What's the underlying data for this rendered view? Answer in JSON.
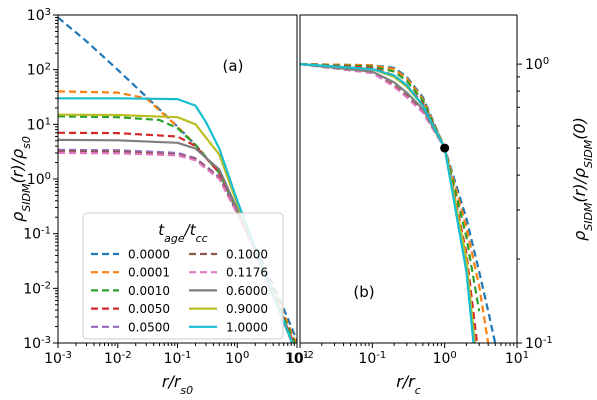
{
  "chart_data": [
    {
      "type": "line",
      "panel_label": "(a)",
      "xlabel": "r/r_s0",
      "ylabel": "ρ_SIDM(r)/ρ_s0",
      "xscale": "log",
      "yscale": "log",
      "xlim": [
        0.001,
        10
      ],
      "ylim": [
        0.001,
        1000
      ],
      "xticks": [
        "10^-3",
        "10^-2",
        "10^-1",
        "10^0",
        "10^1"
      ],
      "yticks": [
        "10^-3",
        "10^-2",
        "10^-1",
        "10^0",
        "10^1",
        "10^2",
        "10^3"
      ],
      "legend": {
        "title": "t_age/t_cc",
        "placement": "lower-left",
        "columns": 2
      },
      "series": [
        {
          "name": "0.0000",
          "style": "dashed",
          "color": "#1f77b4",
          "x": [
            0.001,
            0.003,
            0.01,
            0.03,
            0.1,
            0.2,
            0.5,
            1,
            2,
            5,
            10
          ],
          "y": [
            900,
            330,
            99,
            32,
            9.1,
            4.2,
            1.3,
            0.25,
            0.056,
            0.0068,
            0.0011
          ]
        },
        {
          "name": "0.0001",
          "style": "dashed",
          "color": "#ff7f0e",
          "x": [
            0.001,
            0.01,
            0.03,
            0.1,
            0.2,
            0.5,
            1,
            2,
            5,
            10
          ],
          "y": [
            40,
            38,
            30,
            9,
            4.2,
            1.3,
            0.25,
            0.053,
            0.0055,
            0.0009
          ]
        },
        {
          "name": "0.0010",
          "style": "dashed",
          "color": "#2ca02c",
          "x": [
            0.001,
            0.01,
            0.05,
            0.1,
            0.2,
            0.5,
            1,
            2,
            5,
            10
          ],
          "y": [
            14,
            13.5,
            12,
            8.5,
            4.2,
            1.3,
            0.25,
            0.052,
            0.0048,
            0.0008
          ]
        },
        {
          "name": "0.0050",
          "style": "dashed",
          "color": "#d62728",
          "x": [
            0.001,
            0.01,
            0.1,
            0.2,
            0.5,
            1,
            2,
            5,
            10
          ],
          "y": [
            7,
            6.9,
            6,
            4,
            1.3,
            0.25,
            0.05,
            0.0045,
            0.0007
          ]
        },
        {
          "name": "0.0500",
          "style": "dashed",
          "color": "#9467bd",
          "x": [
            0.001,
            0.01,
            0.1,
            0.2,
            0.5,
            1,
            2,
            5,
            10
          ],
          "y": [
            3.4,
            3.35,
            3,
            2.4,
            1.1,
            0.24,
            0.048,
            0.004,
            0.0006
          ]
        },
        {
          "name": "0.1000",
          "style": "dashed",
          "color": "#8c564b",
          "x": [
            0.001,
            0.01,
            0.1,
            0.2,
            0.5,
            1,
            2,
            5,
            10
          ],
          "y": [
            3.2,
            3.15,
            2.8,
            2.3,
            1.05,
            0.235,
            0.047,
            0.004,
            0.0006
          ]
        },
        {
          "name": "0.1176",
          "style": "dashed",
          "color": "#e377c2",
          "x": [
            0.001,
            0.01,
            0.1,
            0.2,
            0.5,
            1,
            2,
            5,
            10
          ],
          "y": [
            3.0,
            2.95,
            2.7,
            2.2,
            1.0,
            0.23,
            0.046,
            0.004,
            0.0006
          ]
        },
        {
          "name": "0.6000",
          "style": "solid",
          "color": "#7f7f7f",
          "x": [
            0.001,
            0.01,
            0.1,
            0.2,
            0.5,
            1,
            2,
            5,
            10
          ],
          "y": [
            5.2,
            5.1,
            4.6,
            3.6,
            1.5,
            0.28,
            0.05,
            0.004,
            0.0006
          ]
        },
        {
          "name": "0.9000",
          "style": "solid",
          "color": "#bcbd22",
          "x": [
            0.001,
            0.01,
            0.1,
            0.2,
            0.5,
            1,
            2,
            5,
            10
          ],
          "y": [
            15,
            14.8,
            13.5,
            10,
            2.8,
            0.35,
            0.055,
            0.0042,
            0.0006
          ]
        },
        {
          "name": "1.0000",
          "style": "solid",
          "color": "#17becf",
          "x": [
            0.001,
            0.01,
            0.1,
            0.2,
            0.3,
            0.5,
            1,
            2,
            5,
            10
          ],
          "y": [
            30,
            30,
            29,
            22,
            11,
            3.6,
            0.4,
            0.055,
            0.0042,
            0.0006
          ]
        }
      ]
    },
    {
      "type": "line",
      "panel_label": "(b)",
      "xlabel": "r/r_c",
      "ylabel": "ρ_SIDM(r)/ρ_SIDM(0)",
      "xscale": "log",
      "yscale": "log",
      "xlim": [
        0.01,
        10
      ],
      "ylim": [
        0.1,
        1.5
      ],
      "xticks": [
        "10^-2",
        "10^-1",
        "10^0",
        "10^1"
      ],
      "yticks": [
        "10^-1",
        "10^0"
      ],
      "yaxis_side": "right",
      "marker": {
        "x": 1,
        "y": 0.5,
        "color": "#000000"
      },
      "series": [
        {
          "name": "0.0000",
          "style": "dashed",
          "color": "#1f77b4",
          "x": [
            0.01,
            0.1,
            0.2,
            0.3,
            0.5,
            1,
            2,
            3,
            4,
            5
          ],
          "y": [
            1.0,
            0.99,
            0.97,
            0.9,
            0.76,
            0.5,
            0.28,
            0.18,
            0.13,
            0.1
          ]
        },
        {
          "name": "0.0001",
          "style": "dashed",
          "color": "#ff7f0e",
          "x": [
            0.01,
            0.1,
            0.2,
            0.3,
            0.5,
            1,
            2,
            3,
            4
          ],
          "y": [
            1.0,
            0.99,
            0.96,
            0.89,
            0.75,
            0.5,
            0.26,
            0.16,
            0.1
          ]
        },
        {
          "name": "0.0010",
          "style": "dashed",
          "color": "#2ca02c",
          "x": [
            0.01,
            0.1,
            0.2,
            0.3,
            0.5,
            1,
            2,
            3
          ],
          "y": [
            1.0,
            0.98,
            0.94,
            0.87,
            0.74,
            0.5,
            0.24,
            0.13
          ]
        },
        {
          "name": "0.0050",
          "style": "dashed",
          "color": "#d62728",
          "x": [
            0.01,
            0.1,
            0.2,
            0.3,
            0.5,
            1,
            2,
            2.8
          ],
          "y": [
            1.0,
            0.97,
            0.91,
            0.84,
            0.72,
            0.5,
            0.21,
            0.1
          ]
        },
        {
          "name": "0.0500",
          "style": "dashed",
          "color": "#9467bd",
          "x": [
            0.01,
            0.1,
            0.2,
            0.3,
            0.5,
            1,
            2,
            2.6
          ],
          "y": [
            1.0,
            0.93,
            0.84,
            0.77,
            0.68,
            0.5,
            0.19,
            0.1
          ]
        },
        {
          "name": "0.1000",
          "style": "dashed",
          "color": "#8c564b",
          "x": [
            0.01,
            0.1,
            0.2,
            0.3,
            0.5,
            1,
            2,
            2.6
          ],
          "y": [
            1.0,
            0.93,
            0.84,
            0.77,
            0.68,
            0.5,
            0.19,
            0.1
          ]
        },
        {
          "name": "0.1176",
          "style": "dashed",
          "color": "#e377c2",
          "x": [
            0.01,
            0.1,
            0.2,
            0.3,
            0.5,
            1,
            2,
            2.6
          ],
          "y": [
            1.0,
            0.93,
            0.83,
            0.76,
            0.67,
            0.5,
            0.19,
            0.1
          ]
        },
        {
          "name": "0.6000",
          "style": "solid",
          "color": "#7f7f7f",
          "x": [
            0.01,
            0.1,
            0.2,
            0.3,
            0.5,
            1,
            2,
            2.6
          ],
          "y": [
            1.0,
            0.94,
            0.86,
            0.79,
            0.69,
            0.5,
            0.19,
            0.1
          ]
        },
        {
          "name": "0.9000",
          "style": "solid",
          "color": "#bcbd22",
          "x": [
            0.01,
            0.1,
            0.2,
            0.3,
            0.5,
            1,
            2,
            2.6
          ],
          "y": [
            1.0,
            0.96,
            0.9,
            0.83,
            0.71,
            0.5,
            0.2,
            0.1
          ]
        },
        {
          "name": "1.0000",
          "style": "solid",
          "color": "#17becf",
          "x": [
            0.01,
            0.1,
            0.2,
            0.3,
            0.5,
            1,
            2,
            2.5
          ],
          "y": [
            1.0,
            0.96,
            0.91,
            0.84,
            0.71,
            0.5,
            0.18,
            0.1
          ]
        }
      ]
    }
  ]
}
